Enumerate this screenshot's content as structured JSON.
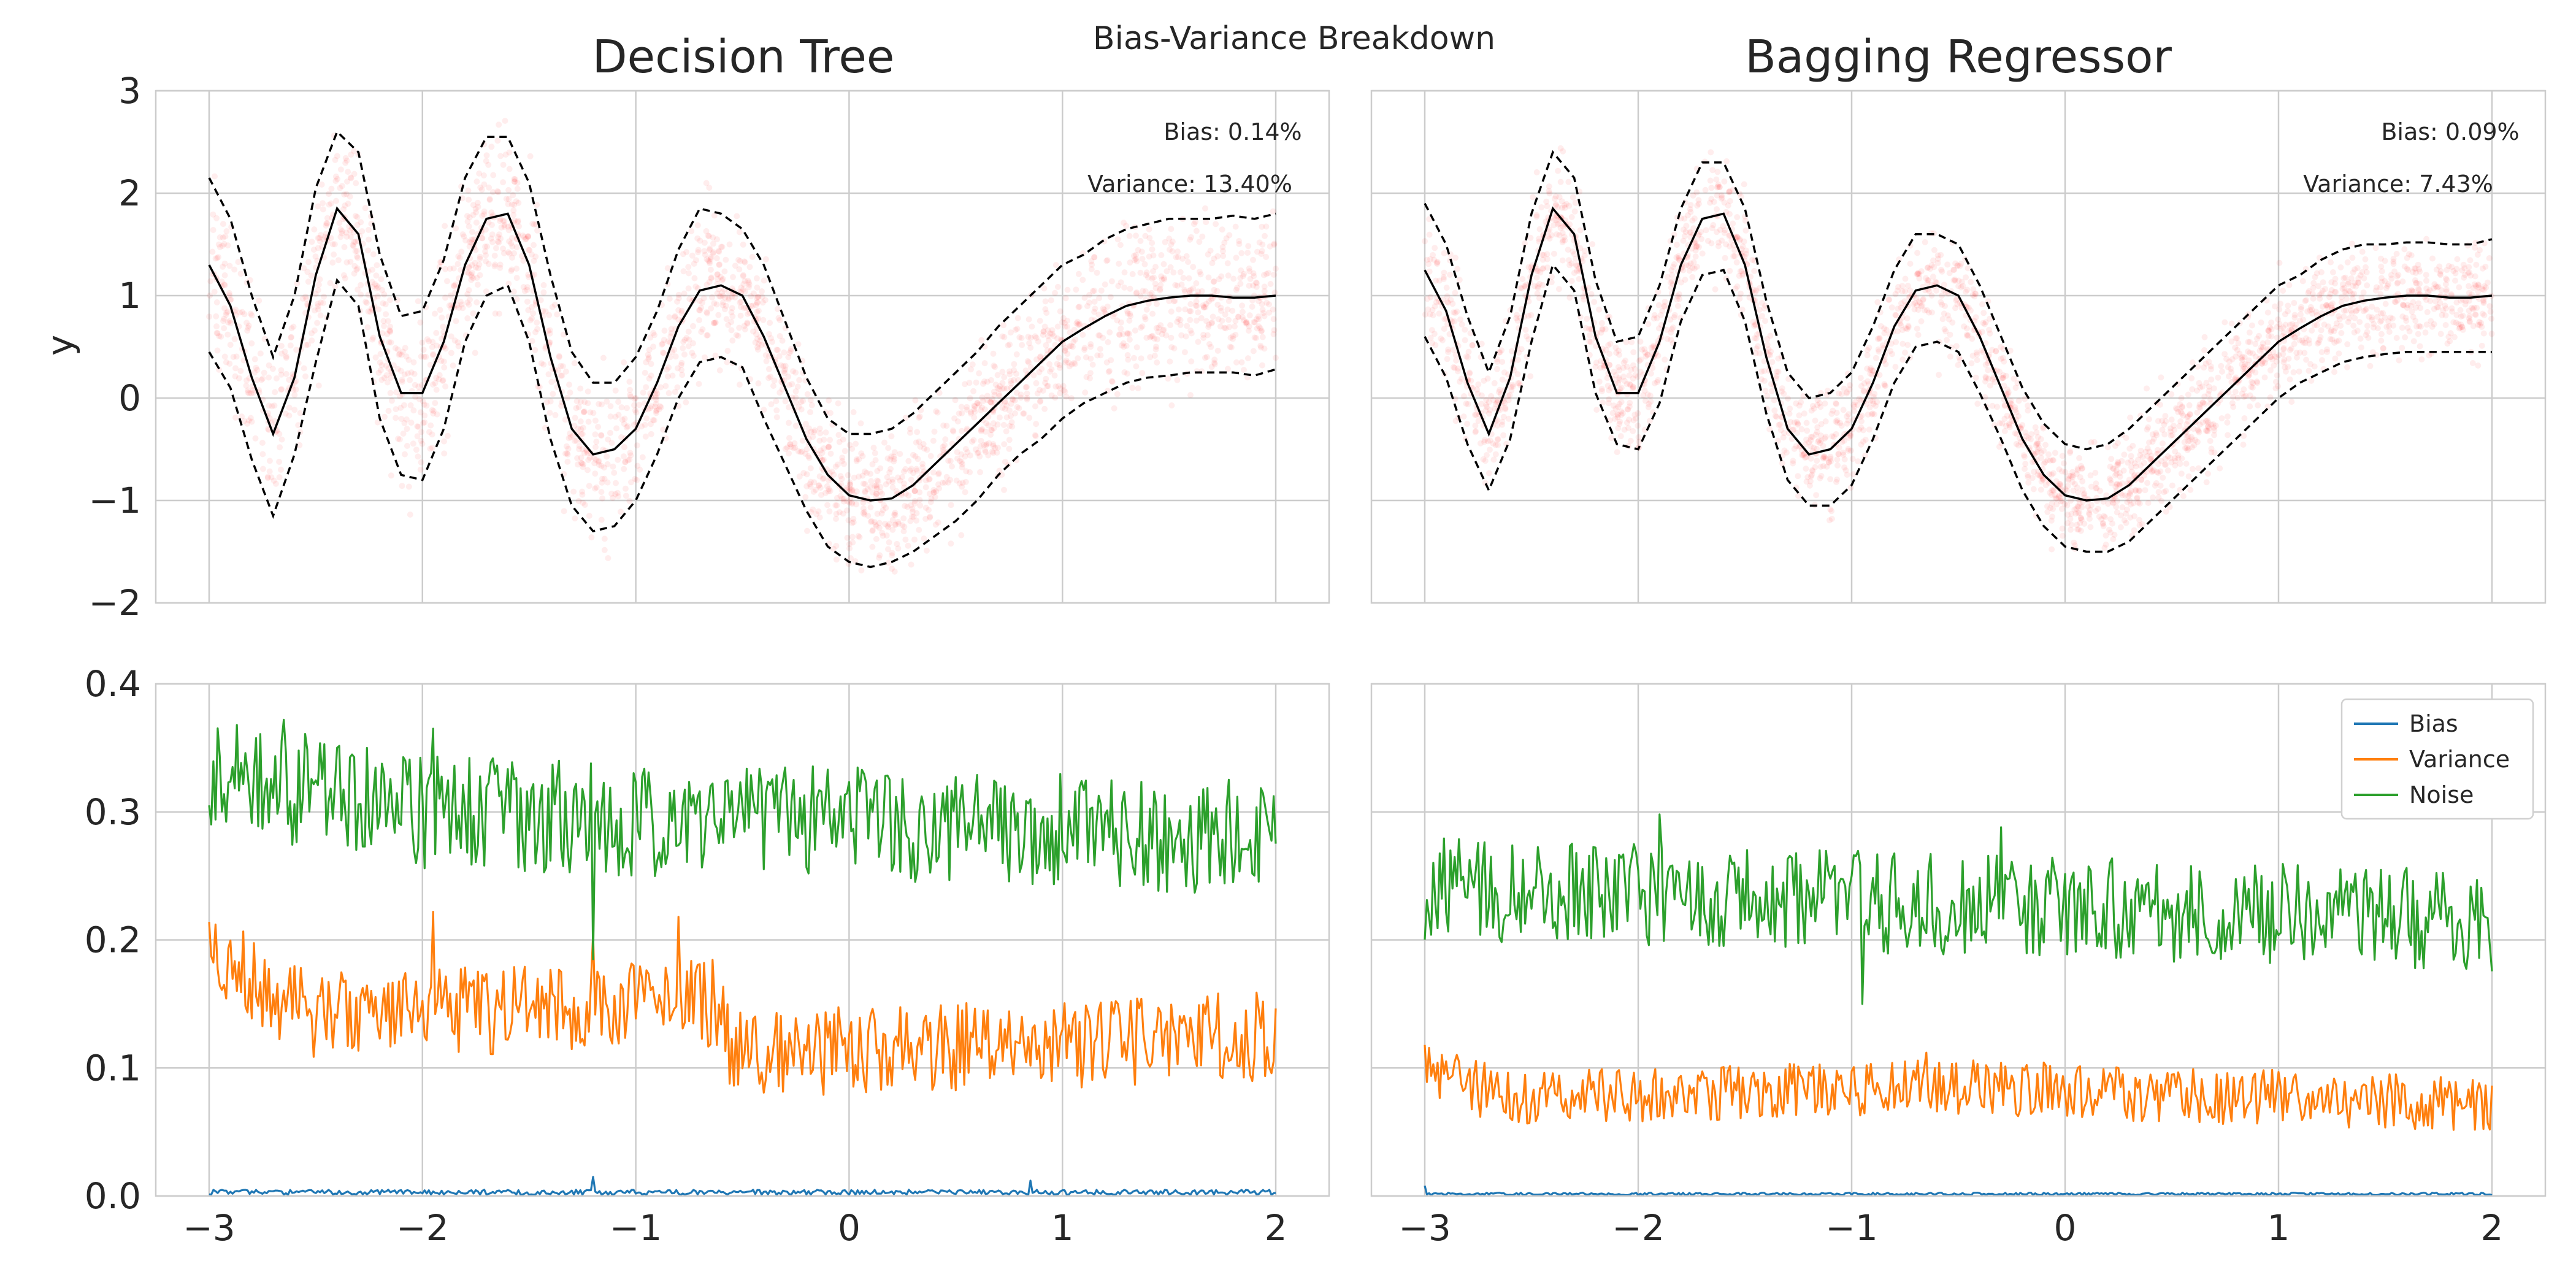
{
  "figure": {
    "suptitle": "Bias-Variance Breakdown"
  },
  "chart_data": [
    {
      "type": "scatter",
      "title": "Decision Tree",
      "xlabel": "",
      "ylabel": "y",
      "xlim": [
        -3.25,
        2.25
      ],
      "ylim": [
        -2,
        3
      ],
      "xticks": [
        -3,
        -2,
        -1,
        0,
        1,
        2
      ],
      "yticks": [
        -2,
        -1,
        0,
        1,
        2,
        3
      ],
      "x_tick_labels": [
        "−3",
        "−2",
        "−1",
        "0",
        "1",
        "2"
      ],
      "y_tick_labels": [
        "−2",
        "−1",
        "0",
        "1",
        "2",
        "3"
      ],
      "grid": true,
      "annotations": [
        "Bias: 0.14%",
        "Variance: 13.40%"
      ],
      "point_color": "#ff0000",
      "mean_line": {
        "x": [
          -3.0,
          -2.9,
          -2.8,
          -2.7,
          -2.6,
          -2.5,
          -2.4,
          -2.3,
          -2.2,
          -2.1,
          -2.0,
          -1.9,
          -1.8,
          -1.7,
          -1.6,
          -1.5,
          -1.4,
          -1.3,
          -1.2,
          -1.1,
          -1.0,
          -0.9,
          -0.8,
          -0.7,
          -0.6,
          -0.5,
          -0.4,
          -0.3,
          -0.2,
          -0.1,
          0.0,
          0.1,
          0.2,
          0.3,
          0.4,
          0.5,
          0.6,
          0.7,
          0.8,
          0.9,
          1.0,
          1.1,
          1.2,
          1.3,
          1.4,
          1.5,
          1.6,
          1.7,
          1.8,
          1.9,
          2.0
        ],
        "y": [
          1.3,
          0.9,
          0.2,
          -0.35,
          0.2,
          1.2,
          1.85,
          1.6,
          0.6,
          0.05,
          0.05,
          0.55,
          1.3,
          1.75,
          1.8,
          1.3,
          0.4,
          -0.3,
          -0.55,
          -0.5,
          -0.3,
          0.15,
          0.7,
          1.05,
          1.1,
          1.0,
          0.6,
          0.1,
          -0.4,
          -0.75,
          -0.95,
          -1.0,
          -0.98,
          -0.85,
          -0.65,
          -0.45,
          -0.25,
          -0.05,
          0.15,
          0.35,
          0.55,
          0.68,
          0.8,
          0.9,
          0.95,
          0.98,
          1.0,
          1.0,
          0.98,
          0.98,
          1.0
        ]
      },
      "upper_band": {
        "x": [
          -3.0,
          -2.9,
          -2.8,
          -2.7,
          -2.6,
          -2.5,
          -2.4,
          -2.3,
          -2.2,
          -2.1,
          -2.0,
          -1.9,
          -1.8,
          -1.7,
          -1.6,
          -1.5,
          -1.4,
          -1.3,
          -1.2,
          -1.1,
          -1.0,
          -0.9,
          -0.8,
          -0.7,
          -0.6,
          -0.5,
          -0.4,
          -0.3,
          -0.2,
          -0.1,
          0.0,
          0.1,
          0.2,
          0.3,
          0.4,
          0.5,
          0.6,
          0.7,
          0.8,
          0.9,
          1.0,
          1.1,
          1.2,
          1.3,
          1.4,
          1.5,
          1.6,
          1.7,
          1.8,
          1.9,
          2.0
        ],
        "y": [
          2.15,
          1.75,
          1.0,
          0.4,
          1.0,
          2.05,
          2.6,
          2.4,
          1.4,
          0.8,
          0.85,
          1.35,
          2.15,
          2.55,
          2.55,
          2.1,
          1.2,
          0.45,
          0.15,
          0.15,
          0.4,
          0.85,
          1.45,
          1.85,
          1.8,
          1.65,
          1.3,
          0.75,
          0.2,
          -0.2,
          -0.35,
          -0.35,
          -0.3,
          -0.15,
          0.05,
          0.25,
          0.45,
          0.7,
          0.9,
          1.1,
          1.3,
          1.4,
          1.55,
          1.65,
          1.7,
          1.75,
          1.75,
          1.75,
          1.78,
          1.75,
          1.8
        ]
      },
      "lower_band": {
        "x": [
          -3.0,
          -2.9,
          -2.8,
          -2.7,
          -2.6,
          -2.5,
          -2.4,
          -2.3,
          -2.2,
          -2.1,
          -2.0,
          -1.9,
          -1.8,
          -1.7,
          -1.6,
          -1.5,
          -1.4,
          -1.3,
          -1.2,
          -1.1,
          -1.0,
          -0.9,
          -0.8,
          -0.7,
          -0.6,
          -0.5,
          -0.4,
          -0.3,
          -0.2,
          -0.1,
          0.0,
          0.1,
          0.2,
          0.3,
          0.4,
          0.5,
          0.6,
          0.7,
          0.8,
          0.9,
          1.0,
          1.1,
          1.2,
          1.3,
          1.4,
          1.5,
          1.6,
          1.7,
          1.8,
          1.9,
          2.0
        ],
        "y": [
          0.45,
          0.1,
          -0.6,
          -1.15,
          -0.55,
          0.35,
          1.15,
          0.9,
          -0.2,
          -0.75,
          -0.8,
          -0.3,
          0.55,
          1.0,
          1.1,
          0.55,
          -0.4,
          -1.05,
          -1.3,
          -1.25,
          -1.0,
          -0.55,
          0.0,
          0.35,
          0.4,
          0.3,
          -0.2,
          -0.65,
          -1.1,
          -1.45,
          -1.6,
          -1.65,
          -1.6,
          -1.5,
          -1.35,
          -1.2,
          -1.0,
          -0.75,
          -0.55,
          -0.4,
          -0.2,
          -0.05,
          0.05,
          0.15,
          0.2,
          0.22,
          0.25,
          0.25,
          0.25,
          0.22,
          0.28
        ]
      }
    },
    {
      "type": "scatter",
      "title": "Bagging Regressor",
      "xlabel": "",
      "ylabel": "",
      "xlim": [
        -3.25,
        2.25
      ],
      "ylim": [
        -2,
        3
      ],
      "xticks": [
        -3,
        -2,
        -1,
        0,
        1,
        2
      ],
      "yticks": [
        -2,
        -1,
        0,
        1,
        2,
        3
      ],
      "grid": true,
      "annotations": [
        "Bias: 0.09%",
        "Variance: 7.43%"
      ],
      "point_color": "#ff0000",
      "mean_line": {
        "x": [
          -3.0,
          -2.9,
          -2.8,
          -2.7,
          -2.6,
          -2.5,
          -2.4,
          -2.3,
          -2.2,
          -2.1,
          -2.0,
          -1.9,
          -1.8,
          -1.7,
          -1.6,
          -1.5,
          -1.4,
          -1.3,
          -1.2,
          -1.1,
          -1.0,
          -0.9,
          -0.8,
          -0.7,
          -0.6,
          -0.5,
          -0.4,
          -0.3,
          -0.2,
          -0.1,
          0.0,
          0.1,
          0.2,
          0.3,
          0.4,
          0.5,
          0.6,
          0.7,
          0.8,
          0.9,
          1.0,
          1.1,
          1.2,
          1.3,
          1.4,
          1.5,
          1.6,
          1.7,
          1.8,
          1.9,
          2.0
        ],
        "y": [
          1.25,
          0.85,
          0.15,
          -0.35,
          0.2,
          1.2,
          1.85,
          1.6,
          0.6,
          0.05,
          0.05,
          0.55,
          1.3,
          1.75,
          1.8,
          1.3,
          0.4,
          -0.3,
          -0.55,
          -0.5,
          -0.3,
          0.15,
          0.7,
          1.05,
          1.1,
          1.0,
          0.6,
          0.1,
          -0.4,
          -0.75,
          -0.95,
          -1.0,
          -0.98,
          -0.85,
          -0.65,
          -0.45,
          -0.25,
          -0.05,
          0.15,
          0.35,
          0.55,
          0.68,
          0.8,
          0.9,
          0.95,
          0.98,
          1.0,
          1.0,
          0.98,
          0.98,
          1.0
        ]
      },
      "upper_band": {
        "x": [
          -3.0,
          -2.9,
          -2.8,
          -2.7,
          -2.6,
          -2.5,
          -2.4,
          -2.3,
          -2.2,
          -2.1,
          -2.0,
          -1.9,
          -1.8,
          -1.7,
          -1.6,
          -1.5,
          -1.4,
          -1.3,
          -1.2,
          -1.1,
          -1.0,
          -0.9,
          -0.8,
          -0.7,
          -0.6,
          -0.5,
          -0.4,
          -0.3,
          -0.2,
          -0.1,
          0.0,
          0.1,
          0.2,
          0.3,
          0.4,
          0.5,
          0.6,
          0.7,
          0.8,
          0.9,
          1.0,
          1.1,
          1.2,
          1.3,
          1.4,
          1.5,
          1.6,
          1.7,
          1.8,
          1.9,
          2.0
        ],
        "y": [
          1.9,
          1.5,
          0.8,
          0.25,
          0.8,
          1.8,
          2.4,
          2.15,
          1.15,
          0.55,
          0.6,
          1.1,
          1.85,
          2.3,
          2.3,
          1.85,
          0.95,
          0.25,
          0.0,
          0.05,
          0.25,
          0.7,
          1.25,
          1.6,
          1.6,
          1.5,
          1.1,
          0.6,
          0.1,
          -0.25,
          -0.45,
          -0.5,
          -0.45,
          -0.3,
          -0.1,
          0.1,
          0.3,
          0.5,
          0.7,
          0.9,
          1.1,
          1.2,
          1.35,
          1.45,
          1.5,
          1.5,
          1.52,
          1.52,
          1.5,
          1.5,
          1.55
        ]
      },
      "lower_band": {
        "x": [
          -3.0,
          -2.9,
          -2.8,
          -2.7,
          -2.6,
          -2.5,
          -2.4,
          -2.3,
          -2.2,
          -2.1,
          -2.0,
          -1.9,
          -1.8,
          -1.7,
          -1.6,
          -1.5,
          -1.4,
          -1.3,
          -1.2,
          -1.1,
          -1.0,
          -0.9,
          -0.8,
          -0.7,
          -0.6,
          -0.5,
          -0.4,
          -0.3,
          -0.2,
          -0.1,
          0.0,
          0.1,
          0.2,
          0.3,
          0.4,
          0.5,
          0.6,
          0.7,
          0.8,
          0.9,
          1.0,
          1.1,
          1.2,
          1.3,
          1.4,
          1.5,
          1.6,
          1.7,
          1.8,
          1.9,
          2.0
        ],
        "y": [
          0.6,
          0.2,
          -0.45,
          -0.9,
          -0.4,
          0.55,
          1.3,
          1.05,
          0.05,
          -0.45,
          -0.5,
          -0.05,
          0.75,
          1.2,
          1.25,
          0.75,
          -0.15,
          -0.8,
          -1.05,
          -1.05,
          -0.85,
          -0.4,
          0.15,
          0.5,
          0.55,
          0.45,
          0.05,
          -0.4,
          -0.9,
          -1.25,
          -1.45,
          -1.5,
          -1.5,
          -1.4,
          -1.2,
          -1.0,
          -0.8,
          -0.6,
          -0.4,
          -0.2,
          0.0,
          0.15,
          0.25,
          0.35,
          0.4,
          0.43,
          0.45,
          0.45,
          0.45,
          0.45,
          0.45
        ]
      }
    },
    {
      "type": "line",
      "title": "",
      "xlabel": "",
      "ylabel": "",
      "xlim": [
        -3.25,
        2.25
      ],
      "ylim": [
        0,
        0.4
      ],
      "xticks": [
        -3,
        -2,
        -1,
        0,
        1,
        2
      ],
      "yticks": [
        0.0,
        0.1,
        0.2,
        0.3,
        0.4
      ],
      "x_tick_labels": [
        "−3",
        "−2",
        "−1",
        "0",
        "1",
        "2"
      ],
      "y_tick_labels": [
        "0.0",
        "0.1",
        "0.2",
        "0.3",
        "0.4"
      ],
      "grid": true,
      "series": [
        {
          "color": "#1f77b4",
          "mean": 0.003,
          "amp": 0.004,
          "spikes": [
            [
              -1.2,
              0.015
            ],
            [
              0.85,
              0.012
            ]
          ]
        },
        {
          "color": "#ff7f0e",
          "mean": 0.135,
          "amp": 0.035,
          "spikes": [
            [
              -1.95,
              0.222
            ],
            [
              -1.2,
              0.205
            ],
            [
              -0.8,
              0.218
            ]
          ],
          "trend": [
            [
              -3.0,
              0.19
            ],
            [
              -2.5,
              0.14
            ],
            [
              -0.6,
              0.15
            ],
            [
              -0.55,
              0.11
            ],
            [
              2.0,
              0.125
            ]
          ]
        },
        {
          "color": "#2ca02c",
          "mean": 0.28,
          "amp": 0.045,
          "spikes": [
            [
              -2.65,
              0.372
            ],
            [
              -1.95,
              0.365
            ],
            [
              -1.2,
              0.185
            ]
          ],
          "trend": [
            [
              -3.0,
              0.33
            ],
            [
              -2.0,
              0.3
            ],
            [
              2.0,
              0.28
            ]
          ]
        }
      ]
    },
    {
      "type": "line",
      "title": "",
      "xlabel": "",
      "ylabel": "",
      "xlim": [
        -3.25,
        2.25
      ],
      "ylim": [
        0,
        0.4
      ],
      "xticks": [
        -3,
        -2,
        -1,
        0,
        1,
        2
      ],
      "yticks": [
        0.0,
        0.1,
        0.2,
        0.3,
        0.4
      ],
      "x_tick_labels": [
        "−3",
        "−2",
        "−1",
        "0",
        "1",
        "2"
      ],
      "grid": true,
      "legend": {
        "placement": "top-right",
        "entries": [
          "Bias",
          "Variance",
          "Noise"
        ]
      },
      "series": [
        {
          "name": "Bias",
          "color": "#1f77b4",
          "mean": 0.002,
          "amp": 0.002,
          "spikes": [
            [
              -3.0,
              0.008
            ]
          ]
        },
        {
          "name": "Variance",
          "color": "#ff7f0e",
          "mean": 0.078,
          "amp": 0.022,
          "spikes": [
            [
              -3.0,
              0.118
            ],
            [
              -0.65,
              0.112
            ]
          ],
          "trend": [
            [
              -3.0,
              0.1
            ],
            [
              -2.6,
              0.075
            ],
            [
              -0.6,
              0.085
            ],
            [
              2.0,
              0.072
            ]
          ]
        },
        {
          "name": "Noise",
          "color": "#2ca02c",
          "mean": 0.225,
          "amp": 0.04,
          "spikes": [
            [
              -1.9,
              0.298
            ],
            [
              -0.95,
              0.15
            ],
            [
              -0.3,
              0.288
            ]
          ],
          "trend": [
            [
              -3.0,
              0.24
            ],
            [
              2.0,
              0.215
            ]
          ]
        }
      ]
    }
  ]
}
